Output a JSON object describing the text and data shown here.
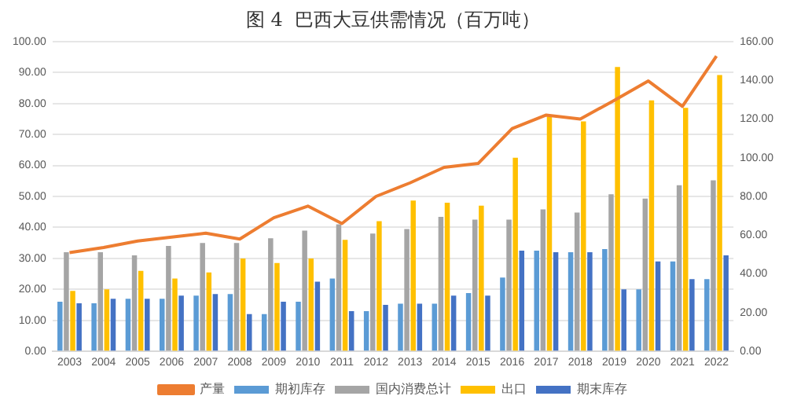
{
  "chart_data": {
    "type": "bar",
    "title": "图 4  巴西大豆供需情况（百万吨）",
    "categories": [
      "2003",
      "2004",
      "2005",
      "2006",
      "2007",
      "2008",
      "2009",
      "2010",
      "2011",
      "2012",
      "2013",
      "2014",
      "2015",
      "2016",
      "2017",
      "2018",
      "2019",
      "2020",
      "2021",
      "2022"
    ],
    "series": [
      {
        "name": "期初库存",
        "color": "#5b9bd5",
        "values": [
          16,
          15.5,
          17,
          17,
          18,
          18.5,
          12,
          16,
          23.5,
          13,
          15.4,
          15.4,
          18.8,
          23.8,
          32.5,
          32,
          33,
          20,
          29,
          23.3
        ]
      },
      {
        "name": "国内消费总计",
        "color": "#a5a5a5",
        "values": [
          32,
          32,
          31,
          34,
          35,
          35,
          36.5,
          39,
          41,
          38,
          39.5,
          43.4,
          42.5,
          42.5,
          45.8,
          44.8,
          50.7,
          49.3,
          53.6,
          55.2
        ]
      },
      {
        "name": "出口",
        "color": "#ffc000",
        "values": [
          19.5,
          20,
          26,
          23.5,
          25.5,
          30,
          28.5,
          30,
          36,
          42,
          48.7,
          48,
          47,
          62.5,
          75.8,
          74.2,
          91.8,
          81,
          78.6,
          89.2
        ]
      },
      {
        "name": "期末库存",
        "color": "#4472c4",
        "values": [
          15.5,
          17,
          17,
          18,
          18.5,
          12,
          16,
          22.5,
          13,
          15,
          15.4,
          18,
          18,
          32.5,
          32,
          32,
          20,
          29,
          23.3,
          31
        ]
      },
      {
        "name": "产量",
        "type": "line",
        "axis": "y2",
        "color": "#ed7d31",
        "values": [
          51,
          53.6,
          57,
          59,
          61,
          58,
          69,
          75,
          66,
          80,
          87,
          95,
          97,
          115,
          122,
          120,
          129.6,
          139.6,
          126.5,
          152.5
        ]
      }
    ],
    "ylim": [
      0,
      100
    ],
    "yticks": [
      {
        "value": 0,
        "label": "0.00"
      },
      {
        "value": 10,
        "label": "10.00"
      },
      {
        "value": 20,
        "label": "20.00"
      },
      {
        "value": 30,
        "label": "30.00"
      },
      {
        "value": 40,
        "label": "40.00"
      },
      {
        "value": 50,
        "label": "50.00"
      },
      {
        "value": 60,
        "label": "60.00"
      },
      {
        "value": 70,
        "label": "70.00"
      },
      {
        "value": 80,
        "label": "80.00"
      },
      {
        "value": 90,
        "label": "90.00"
      },
      {
        "value": 100,
        "label": "100.00"
      }
    ],
    "y2lim": [
      0,
      160
    ],
    "y2ticks": [
      {
        "value": 0,
        "label": "0.00"
      },
      {
        "value": 20,
        "label": "20.00"
      },
      {
        "value": 40,
        "label": "40.00"
      },
      {
        "value": 60,
        "label": "60.00"
      },
      {
        "value": 80,
        "label": "80.00"
      },
      {
        "value": 100,
        "label": "100.00"
      },
      {
        "value": 120,
        "label": "120.00"
      },
      {
        "value": 140,
        "label": "140.00"
      },
      {
        "value": 160,
        "label": "160.00"
      }
    ],
    "grid": "y",
    "legend": "bottom",
    "marker": "none"
  }
}
